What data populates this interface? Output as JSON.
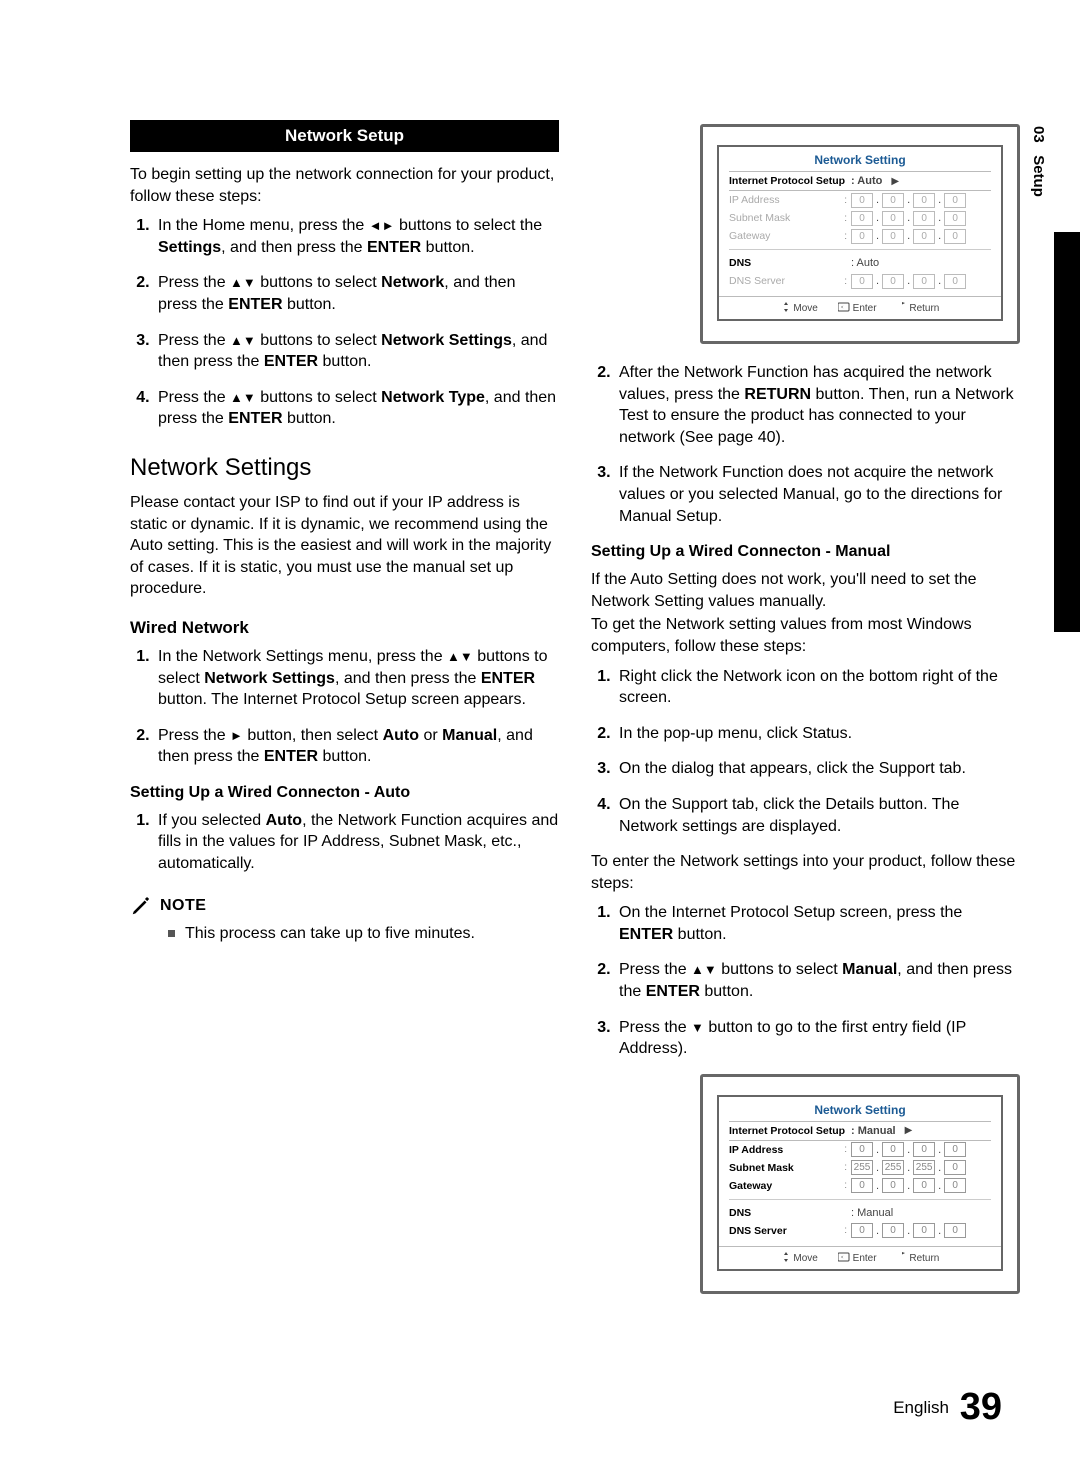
{
  "sideTab": {
    "chapterNum": "03",
    "chapterTitle": "Setup"
  },
  "left": {
    "sectionBar": "Network Setup",
    "intro": "To begin setting up the network connection for your product, follow these steps:",
    "steps": [
      {
        "pre": "In the Home menu, press the ",
        "arrows": "◄►",
        "mid": " buttons to select the ",
        "bold1": "Settings",
        "mid2": ", and then press the ",
        "bold2": "ENTER",
        "tail": " button."
      },
      {
        "pre": "Press the ",
        "arrows": "▲▼",
        "mid": " buttons to select ",
        "bold1": "Network",
        "mid2": ", and then press the ",
        "bold2": "ENTER",
        "tail": " button."
      },
      {
        "pre": "Press the ",
        "arrows": "▲▼",
        "mid": " buttons to select ",
        "bold1": "Network Settings",
        "mid2": ", and then press the ",
        "bold2": "ENTER",
        "tail": " button."
      },
      {
        "pre": "Press the ",
        "arrows": "▲▼",
        "mid": " buttons to select ",
        "bold1": "Network Type",
        "mid2": ", and then press the ",
        "bold2": "ENTER",
        "tail": " button."
      }
    ],
    "h2": "Network Settings",
    "para2": "Please contact your ISP to find out if your IP address is static or dynamic. If it is dynamic, we recommend using the Auto setting. This is the easiest and will work in the majority of cases. If it is static, you must use the manual set up procedure.",
    "wiredHeading": "Wired Network",
    "wiredSteps": [
      {
        "pre": "In the Network Settings menu, press the ",
        "arrows": "▲▼",
        "mid": " buttons to select ",
        "bold1": "Network Settings",
        "mid2": ", and then press the ",
        "bold2": "ENTER",
        "tail": " button. The Internet Protocol Setup screen appears."
      },
      {
        "pre": "Press the ",
        "arrows": "►",
        "mid": " button, then select ",
        "bold1": "Auto",
        "mid15": " or ",
        "bold15": "Manual",
        "mid2": ", and then press the ",
        "bold2": "ENTER",
        "tail": " button."
      }
    ],
    "autoHeading": "Setting Up a Wired Connecton - Auto",
    "autoSteps": [
      {
        "pre": "If you selected ",
        "bold1": "Auto",
        "tail": ", the Network Function acquires and fills in the values for IP Address, Subnet Mask, etc., automatically."
      }
    ],
    "noteLabel": "NOTE",
    "noteText": "This process can take up to five minutes."
  },
  "right": {
    "afterSteps": [
      {
        "pre": "After the Network Function has acquired the network values, press the ",
        "bold1": "RETURN",
        "tail": " button. Then, run a Network Test to ensure the product has connected to your network (See page 40)."
      },
      {
        "pre": "If the Network Function does not acquire the network values or you selected Manual, go to the directions for Manual Setup.",
        "bold1": "",
        "tail": ""
      }
    ],
    "manualHeading": "Setting Up a Wired Connecton - Manual",
    "manualIntro1": "If the Auto Setting does not work, you'll need to set the Network Setting values manually.",
    "manualIntro2": "To get the Network setting values from most Windows computers, follow these steps:",
    "winSteps": [
      "Right click the Network icon on the bottom right of the screen.",
      "In the pop-up menu, click Status.",
      "On the dialog that appears, click the Support tab.",
      "On the Support tab, click the Details button. The Network settings are displayed."
    ],
    "enterIntro": "To enter the Network settings into your product, follow these steps:",
    "enterSteps": [
      {
        "pre": "On the Internet Protocol Setup screen, press the ",
        "bold1": "ENTER",
        "tail": " button."
      },
      {
        "pre": "Press the ",
        "arrows": "▲▼",
        "mid": " buttons to select ",
        "bold1": "Manual",
        "mid2": ", and then press the ",
        "bold2": "ENTER",
        "tail": " button."
      },
      {
        "pre": "Press the ",
        "arrows": "▼",
        "mid": " button to go to the first entry field (IP Address).",
        "bold1": "",
        "tail": ""
      }
    ]
  },
  "uiBoxes": {
    "box1": {
      "title": "Network Setting",
      "ipsLabel": "Internet Protocol Setup",
      "ipsValue": "Auto",
      "rows": [
        {
          "label": "IP Address",
          "octets": [
            "0",
            "0",
            "0",
            "0"
          ],
          "grey": true
        },
        {
          "label": "Subnet Mask",
          "octets": [
            "0",
            "0",
            "0",
            "0"
          ],
          "grey": true
        },
        {
          "label": "Gateway",
          "octets": [
            "0",
            "0",
            "0",
            "0"
          ],
          "grey": true
        }
      ],
      "dnsLabel": "DNS",
      "dnsValue": "Auto",
      "dnsServerLabel": "DNS Server",
      "dnsOctets": [
        "0",
        "0",
        "0",
        "0"
      ],
      "footer": {
        "move": "Move",
        "enter": "Enter",
        "return": "Return"
      }
    },
    "box2": {
      "title": "Network Setting",
      "ipsLabel": "Internet Protocol Setup",
      "ipsValue": "Manual",
      "rows": [
        {
          "label": "IP Address",
          "octets": [
            "0",
            "0",
            "0",
            "0"
          ],
          "bold": true
        },
        {
          "label": "Subnet Mask",
          "octets": [
            "255",
            "255",
            "255",
            "0"
          ],
          "bold": true
        },
        {
          "label": "Gateway",
          "octets": [
            "0",
            "0",
            "0",
            "0"
          ],
          "bold": true
        }
      ],
      "dnsLabel": "DNS",
      "dnsValue": "Manual",
      "dnsServerLabel": "DNS Server",
      "dnsOctets": [
        "0",
        "0",
        "0",
        "0"
      ],
      "footer": {
        "move": "Move",
        "enter": "Enter",
        "return": "Return"
      }
    }
  },
  "footer": {
    "lang": "English",
    "page": "39"
  },
  "colors": {
    "sectionBarBg": "#000000",
    "uiTitle": "#1b5a94",
    "border": "#676767"
  }
}
